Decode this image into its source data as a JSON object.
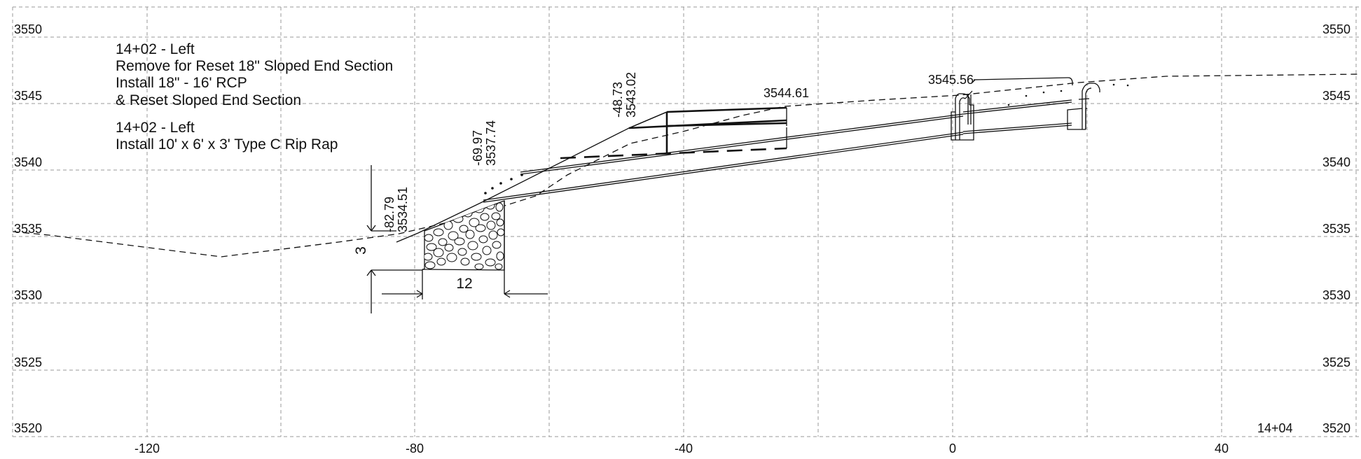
{
  "axes": {
    "y_left": [
      "3550",
      "3545",
      "3540",
      "3535",
      "3530",
      "3525",
      "3520"
    ],
    "y_right": [
      "3550",
      "3545",
      "3540",
      "3535",
      "3530",
      "3525",
      "3520"
    ],
    "x_bottom": [
      "-120",
      "-80",
      "-40",
      "0",
      "40"
    ]
  },
  "notes": {
    "block1": {
      "line1": "14+02 - Left",
      "line2": "Remove for Reset 18\" Sloped End Section",
      "line3": "Install 18\" - 16' RCP",
      "line4": "&  Reset Sloped End Section"
    },
    "block2": {
      "line1": "14+02 - Left",
      "line2": "Install 10' x 6' x 3' Type C Rip Rap"
    }
  },
  "labels": {
    "pt1_offset": "-82.79",
    "pt1_elev": "3534.51",
    "pt2_offset": "-69.97",
    "pt2_elev": "3537.74",
    "pt3_offset": "-48.73",
    "pt3_elev": "3543.02",
    "elev_3544": "3544.61",
    "elev_3545": "3545.56",
    "dim_depth": "3",
    "dim_width": "12",
    "station": "14+04"
  }
}
